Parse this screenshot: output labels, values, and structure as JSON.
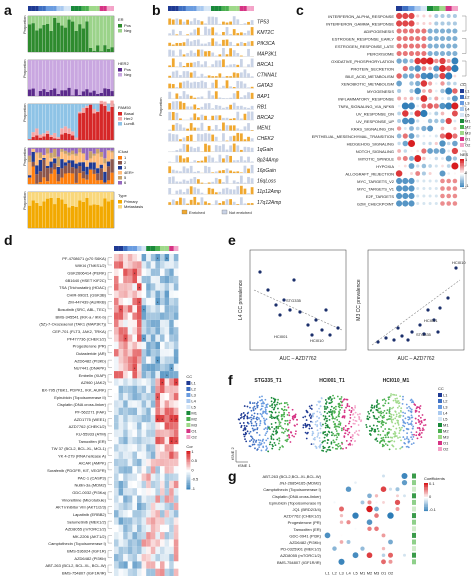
{
  "panels": {
    "a": "a",
    "b": "b",
    "c": "c",
    "d": "d",
    "e": "e",
    "f": "f",
    "g": "g"
  },
  "panel_a": {
    "ylabel": "Proportion",
    "tracks": [
      {
        "legend_title": "ER",
        "legend": [
          "Pos",
          "Neg"
        ],
        "colors": [
          "#2e8b2e",
          "#9bd38a"
        ]
      },
      {
        "legend_title": "HER2",
        "legend": [
          "Pos",
          "Neg"
        ],
        "colors": [
          "#5b2a8c",
          "#c9a7e0"
        ]
      },
      {
        "legend_title": "PAM50",
        "legend": [
          "Basal",
          "Her2",
          "LumB"
        ],
        "colors": [
          "#d62728",
          "#f4a6a6",
          "#8ec3e6"
        ]
      },
      {
        "legend_title": "iClust",
        "legend": [
          "1",
          "2",
          "3",
          "4ER+",
          "5",
          "6"
        ],
        "colors": [
          "#ff7f0e",
          "#8c564b",
          "#1f3a93",
          "#ffbb78",
          "#c7a16a",
          "#9467bd"
        ]
      },
      {
        "legend_title": "Type",
        "legend": [
          "Primary",
          "Metastasis"
        ],
        "colors": [
          "#f2a900",
          "#f9d77a"
        ]
      }
    ]
  },
  "panel_b": {
    "ylabel": "Proportion",
    "genes": [
      "TP53",
      "KMT2C",
      "PIK3CA",
      "MAP3K1",
      "BRCA1",
      "CTNNA1",
      "GATA3",
      "BAP1",
      "RB1",
      "BRCA2",
      "MEN1",
      "CHEK2",
      "1qGain",
      "8p24Amp",
      "16pGain",
      "16qLoss",
      "11p12Amp",
      "17q12Amp"
    ],
    "legend": [
      "Enriched",
      "Not enriched"
    ],
    "legend_colors": [
      "#f0a830",
      "#c9d3e6"
    ]
  },
  "panel_c": {
    "pathways": [
      "INTERFERON_ALPHA_RESPONSE",
      "INTERFERON_GAMMA_RESPONSE",
      "ADIPOGENESIS",
      "ESTROGEN_RESPONSE_EARLY",
      "ESTROGEN_RESPONSE_LATE",
      "PEROXISOME",
      "OXIDATIVE_PHOSPHORYLATION",
      "PROTEIN_SECRETION",
      "BILE_ACID_METABOLISM",
      "XENOBIOTIC_METABOLISM",
      "MYOGENESIS",
      "INFLAMMATORY_RESPONSE",
      "TNFA_SIGNALING_VIA_NFKB",
      "UV_RESPONSE_DN",
      "UV_RESPONSE_UP",
      "KRAS_SIGNALING_DN",
      "EPITHELIAL_MESENCHYMAL_TRANSITION",
      "HEDGEHOG_SIGNALING",
      "NOTCH_SIGNALING",
      "MITOTIC_SPINDLE",
      "HYPOXIA",
      "ALLOGRAFT_REJECTION",
      "MYC_TARGETS_V2",
      "MYC_TARGETS_V1",
      "E2F_TARGETS",
      "G2M_CHECKPOINT"
    ],
    "legend_title": "CC",
    "cc_labels": [
      "L1",
      "L2",
      "L3",
      "L4",
      "L5",
      "M1",
      "M2",
      "M3",
      "O1",
      "O2"
    ],
    "nes_title": "NES",
    "nes_ticks": [
      "1",
      "0",
      "-1"
    ]
  },
  "panel_d": {
    "drugs": [
      "PF-4708671 (p70 S6KA)",
      "WIKI4 (TNKS1/2)",
      "GSK2606414 (PERK)",
      "6B1640 (HSET KIF2C)",
      "TSA (Trichostatin) (HDAC)",
      "CHIR-99021 (GSK3B)",
      "ZM-447439 (AURKB)",
      "Bosutinib (SRC, ABL, TEC)",
      "BMS-345541 (IKK-a / IKK-b)",
      "(5Z)-7-Oxozeaenol (TAK1 (MAP3K7))",
      "CEP-701 (FLT3, JAK2, TRKA)",
      "PF477736 (CHEK1/2)",
      "Progesterone (PR)",
      "Dutasteride (AR)",
      "AZD6482 (PI3Kb)",
      "NU7441 (DNAPK)",
      "Embelin (XIAP)",
      "AZ960 (JAK2)",
      "BX-795 (TBK1, PDPK1, IKK, AURK)",
      "Epirubicin (Topoisomerase II)",
      "Cisplatin (DNA cross-linker)",
      "PF-562271 (FAK)",
      "AZD1775 (WEE1)",
      "AZD7762 (CHEK1/2)",
      "KU-55933 (ATM)",
      "Tamoxifen (ER)",
      "TW 37 (BCL2, BCL-XL, MCL1)",
      "YK 4-279 (RNA helicase A)",
      "AICAR (AMPK)",
      "Sorafenib (PDGFR, KIT, VEGFR)",
      "PAC-1 (CASP3)",
      "Nutlin-3a (MDM2)",
      "GDC-0032 (PI3Ka)",
      "Vinorelbine (Microtubule)",
      "AKT inhibitor VIII (AKT1/2/3)",
      "Lapatinib (ERBB2)",
      "Selumetinib (MEK1/2)",
      "AZD8055 (mTORC1/2)",
      "MK-2206 (AKT1/2)",
      "Camptothecin (Topoisomerase I)",
      "BMS-536924 (IGF1R)",
      "AZD6482 (PI3Kb)",
      "ABT-263 (BCL2, BCL-XL, BCL-W)",
      "BMS-754807 (IGF1R/IR)"
    ],
    "legend_title": "CC",
    "cc_labels": [
      "L1",
      "L2",
      "L3",
      "L4",
      "L5",
      "M1",
      "M2",
      "M3",
      "O1",
      "O2"
    ],
    "cor_title": "Cor",
    "cor_ticks": [
      "1",
      "0.5",
      "0",
      "-0.5",
      "-1"
    ]
  },
  "panel_e": {
    "left": {
      "ylabel": "L4 CC prevalence",
      "xlabel": "AUC – AZD7762",
      "labels": [
        "STG335",
        "HCI001",
        "HCI010"
      ]
    },
    "right": {
      "ylabel": "M3 CC prevalence",
      "xlabel": "AUC – AZD7762",
      "labels": [
        "HCI010",
        "HCI001",
        "STG335"
      ]
    }
  },
  "panel_f": {
    "titles": [
      "STG335_T1",
      "HCI001_T1",
      "HCI010_M1"
    ],
    "axis_labels": [
      "tSNE 1",
      "tSNE 2"
    ],
    "legend_title": "CC",
    "cc_labels": [
      "L1",
      "L2",
      "L3",
      "L4",
      "L5",
      "M1",
      "M2",
      "M3",
      "O1",
      "O2"
    ]
  },
  "panel_g": {
    "drugs": [
      "ABT-263 (BCL2,BCL-XL,BCL-W)",
      "JNJ-26854165 (MDM2)",
      "Camptothecin (Topoisomerase I)",
      "Cisplatin (DNA cross-linker)",
      "Epirubicin (Topoisomerase II)",
      "JQ1 (BRD2/3/4)",
      "AZD7762 (CHEK1/2)",
      "Progesterone (PR)",
      "Tamoxifen (ER)",
      "GDC-0941 (PI3K)",
      "AZD6482 (PI3Kb)",
      "PD-0325901 (MEK1/2)",
      "AZD8055 (mTORC1/2)",
      "BMS-754807 (IGF1R/IR)"
    ],
    "legend_title": "Coefficients",
    "coef_ticks": [
      "0.1",
      "0",
      "-0.1"
    ]
  },
  "colors": {
    "cc": [
      "#1f3a93",
      "#3e6fc2",
      "#6a9ce0",
      "#a9c9ef",
      "#d6e6f6",
      "#1a8a3a",
      "#4bb04f",
      "#9fd98a",
      "#d63384",
      "#f4a3c8"
    ],
    "pos": "#d7191c",
    "neg": "#2c7bb6",
    "neutral": "#ffffff"
  }
}
